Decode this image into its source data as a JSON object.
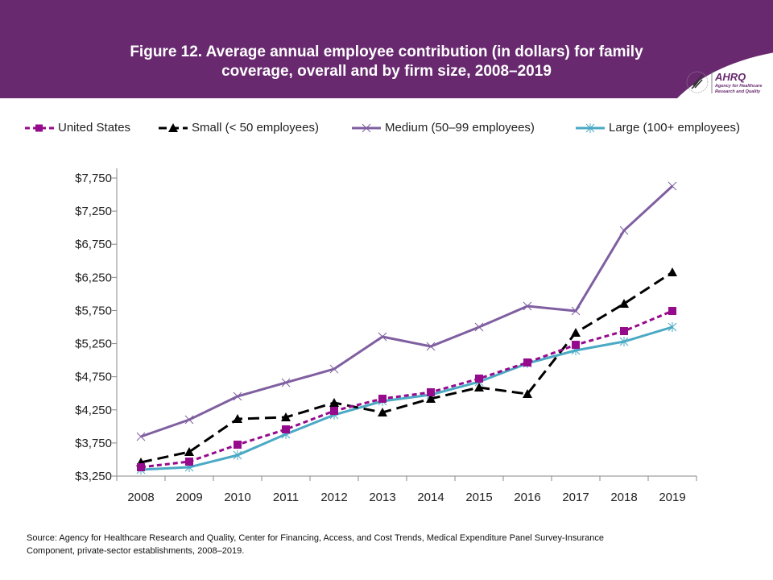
{
  "header": {
    "title_line1": "Figure 12. Average annual employee contribution (in dollars) for family",
    "title_line2": "coverage, overall and by firm size, 2008–2019",
    "logo_text": "AHRQ Agency for Healthcare Research and Quality",
    "brand_color": "#68296f"
  },
  "chart_data": {
    "type": "line",
    "title": "Figure 12. Average annual employee contribution (in dollars) for family coverage, overall and by firm size, 2008–2019",
    "categories": [
      "2008",
      "2009",
      "2010",
      "2011",
      "2012",
      "2013",
      "2014",
      "2015",
      "2016",
      "2017",
      "2018",
      "2019"
    ],
    "ylim": [
      3250,
      7750
    ],
    "yticks": [
      "$3,250",
      "$3,750",
      "$4,250",
      "$4,750",
      "$5,250",
      "$5,750",
      "$6,250",
      "$6,750",
      "$7,250",
      "$7,750"
    ],
    "ytick_values": [
      3250,
      3750,
      4250,
      4750,
      5250,
      5750,
      6250,
      6750,
      7250,
      7750
    ],
    "grid": false,
    "legend_position": "top",
    "series": [
      {
        "name": "United States",
        "color": "#960a8c",
        "dash": "short-dash",
        "marker": "square",
        "values": [
          3384,
          3469,
          3724,
          3955,
          4235,
          4418,
          4515,
          4722,
          4965,
          5232,
          5439,
          5743
        ]
      },
      {
        "name": "Small (< 50 employees)",
        "color": "#000000",
        "dash": "long-dash",
        "marker": "triangle",
        "values": [
          3457,
          3615,
          4113,
          4138,
          4357,
          4211,
          4418,
          4588,
          4490,
          5415,
          5852,
          6327
        ]
      },
      {
        "name": "Medium (50–99 employees)",
        "color": "#7f5fa0",
        "dash": "solid",
        "marker": "x",
        "values": [
          3846,
          4101,
          4454,
          4661,
          4867,
          5354,
          5208,
          5500,
          5816,
          5743,
          6959,
          7628
        ]
      },
      {
        "name": "Large (100+ employees)",
        "color": "#4aa9c4",
        "dash": "solid",
        "marker": "asterisk",
        "values": [
          3347,
          3384,
          3566,
          3882,
          4174,
          4381,
          4478,
          4673,
          4952,
          5147,
          5281,
          5500
        ]
      }
    ]
  },
  "source": {
    "line1": "Source: Agency for Healthcare Research and Quality, Center for Financing, Access, and Cost Trends, Medical Expenditure Panel Survey-Insurance",
    "line2": "Component, private-sector establishments, 2008–2019."
  }
}
